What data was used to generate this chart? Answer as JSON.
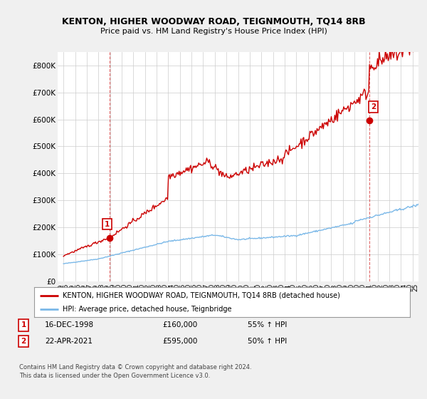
{
  "title": "KENTON, HIGHER WOODWAY ROAD, TEIGNMOUTH, TQ14 8RB",
  "subtitle": "Price paid vs. HM Land Registry's House Price Index (HPI)",
  "ylim": [
    0,
    850000
  ],
  "yticks": [
    0,
    100000,
    200000,
    300000,
    400000,
    500000,
    600000,
    700000,
    800000
  ],
  "ytick_labels": [
    "£0",
    "£100K",
    "£200K",
    "£300K",
    "£400K",
    "£500K",
    "£600K",
    "£700K",
    "£800K"
  ],
  "sale1": {
    "date_num": 1998.96,
    "price": 160000,
    "label": "1",
    "date_str": "16-DEC-1998",
    "price_str": "£160,000",
    "pct": "55% ↑ HPI"
  },
  "sale2": {
    "date_num": 2021.31,
    "price": 595000,
    "label": "2",
    "date_str": "22-APR-2021",
    "price_str": "£595,000",
    "pct": "50% ↑ HPI"
  },
  "legend_entries": [
    "KENTON, HIGHER WOODWAY ROAD, TEIGNMOUTH, TQ14 8RB (detached house)",
    "HPI: Average price, detached house, Teignbridge"
  ],
  "footnote": "Contains HM Land Registry data © Crown copyright and database right 2024.\nThis data is licensed under the Open Government Licence v3.0.",
  "hpi_color": "#7ab8e8",
  "sold_color": "#cc0000",
  "background_color": "#f0f0f0",
  "plot_bg": "#ffffff",
  "grid_color": "#cccccc",
  "xlim": [
    1994.5,
    2025.5
  ]
}
